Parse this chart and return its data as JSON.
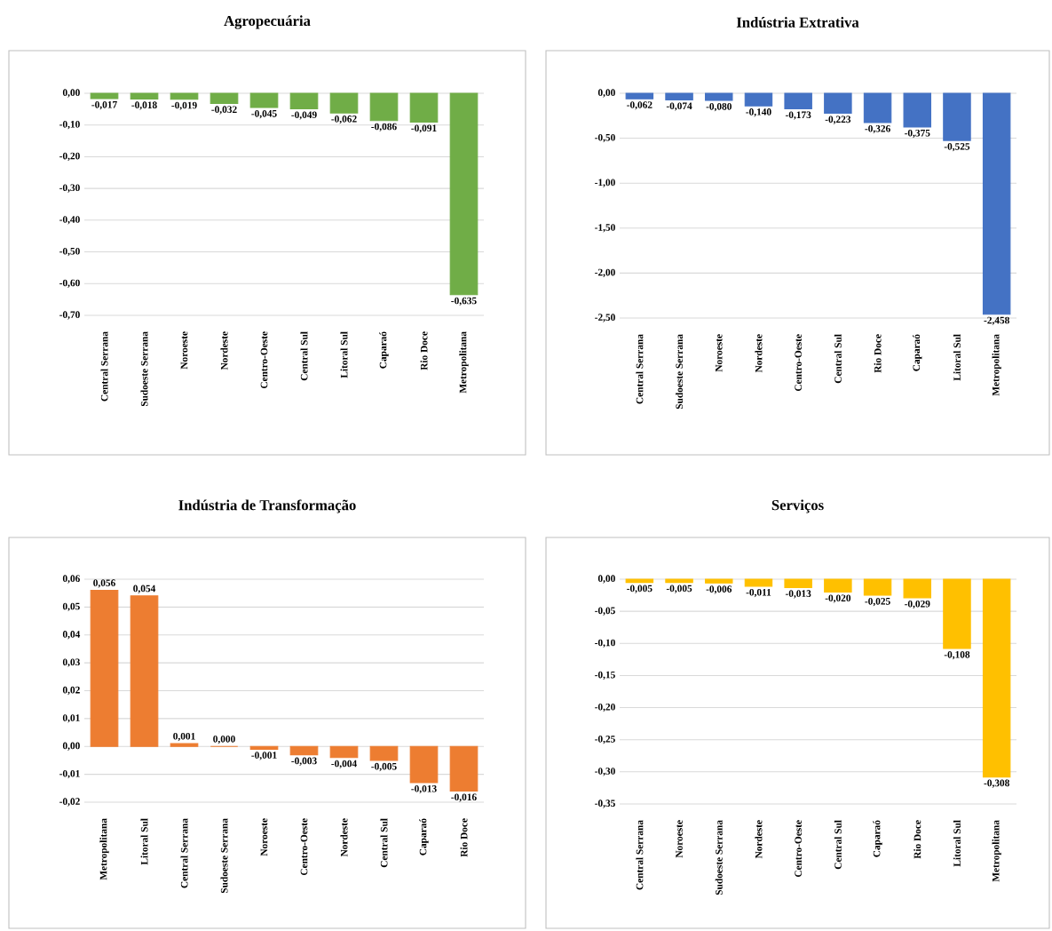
{
  "chart_data": [
    {
      "type": "bar",
      "title": "Agropecuária",
      "color": "#70ad47",
      "grid": "y",
      "categories": [
        "Central Serrana",
        "Sudoeste Serrana",
        "Noroeste",
        "Nordeste",
        "Centro-Oeste",
        "Central Sul",
        "Litoral Sul",
        "Caparaó",
        "Rio Doce",
        "Metropolitana"
      ],
      "values": [
        -0.017,
        -0.018,
        -0.019,
        -0.032,
        -0.045,
        -0.049,
        -0.062,
        -0.086,
        -0.091,
        -0.635
      ],
      "value_labels": [
        "-0,017",
        "-0,018",
        "-0,019",
        "-0,032",
        "-0,045",
        "-0,049",
        "-0,062",
        "-0,086",
        "-0,091",
        "-0,635"
      ],
      "ylim": [
        -0.7,
        0
      ],
      "yticks": [
        {
          "value": 0,
          "label": "0,00"
        },
        {
          "value": -0.1,
          "label": "-0,10"
        },
        {
          "value": -0.2,
          "label": "-0,20"
        },
        {
          "value": -0.3,
          "label": "-0,30"
        },
        {
          "value": -0.4,
          "label": "-0,40"
        },
        {
          "value": -0.5,
          "label": "-0,50"
        },
        {
          "value": -0.6,
          "label": "-0,60"
        },
        {
          "value": -0.7,
          "label": "-0,70"
        }
      ]
    },
    {
      "type": "bar",
      "title": "Indústria Extrativa",
      "color": "#4472c4",
      "grid": "y",
      "categories": [
        "Central Serrana",
        "Sudoeste Serrana",
        "Noroeste",
        "Nordeste",
        "Centro-Oeste",
        "Central Sul",
        "Rio Doce",
        "Caparaó",
        "Litoral Sul",
        "Metropolitana"
      ],
      "values": [
        -0.062,
        -0.074,
        -0.08,
        -0.14,
        -0.173,
        -0.223,
        -0.326,
        -0.375,
        -0.525,
        -2.458
      ],
      "value_labels": [
        "-0,062",
        "-0,074",
        "-0,080",
        "-0,140",
        "-0,173",
        "-0,223",
        "-0,326",
        "-0,375",
        "-0,525",
        "-2,458"
      ],
      "ylim": [
        -2.5,
        0
      ],
      "yticks": [
        {
          "value": 0,
          "label": "0,00"
        },
        {
          "value": -0.5,
          "label": "-0,50"
        },
        {
          "value": -1,
          "label": "-1,00"
        },
        {
          "value": -1.5,
          "label": "-1,50"
        },
        {
          "value": -2,
          "label": "-2,00"
        },
        {
          "value": -2.5,
          "label": "-2,50"
        }
      ]
    },
    {
      "type": "bar",
      "title": "Indústria de Transformação",
      "color": "#ed7d31",
      "grid": "y",
      "categories": [
        "Metropolitana",
        "Litoral Sul",
        "Central Serrana",
        "Sudoeste Serrana",
        "Noroeste",
        "Centro-Oeste",
        "Nordeste",
        "Central Sul",
        "Caparaó",
        "Rio Doce"
      ],
      "values": [
        0.056,
        0.054,
        0.001,
        0.0,
        -0.001,
        -0.003,
        -0.004,
        -0.005,
        -0.013,
        -0.016
      ],
      "value_labels": [
        "0,056",
        "0,054",
        "0,001",
        "0,000",
        "-0,001",
        "-0,003",
        "-0,004",
        "-0,005",
        "-0,013",
        "-0,016"
      ],
      "ylim": [
        -0.02,
        0.06
      ],
      "yticks": [
        {
          "value": 0.06,
          "label": "0,06"
        },
        {
          "value": 0.05,
          "label": "0,05"
        },
        {
          "value": 0.04,
          "label": "0,04"
        },
        {
          "value": 0.03,
          "label": "0,03"
        },
        {
          "value": 0.02,
          "label": "0,02"
        },
        {
          "value": 0.01,
          "label": "0,01"
        },
        {
          "value": 0,
          "label": "0,00"
        },
        {
          "value": -0.01,
          "label": "-0,01"
        },
        {
          "value": -0.02,
          "label": "-0,02"
        }
      ]
    },
    {
      "type": "bar",
      "title": "Serviços",
      "color": "#ffc000",
      "grid": "y",
      "categories": [
        "Central Serrana",
        "Noroeste",
        "Sudoeste Serrana",
        "Nordeste",
        "Centro-Oeste",
        "Central Sul",
        "Caparaó",
        "Rio Doce",
        "Litoral Sul",
        "Metropolitana"
      ],
      "values": [
        -0.005,
        -0.005,
        -0.006,
        -0.011,
        -0.013,
        -0.02,
        -0.025,
        -0.029,
        -0.108,
        -0.308
      ],
      "value_labels": [
        "-0,005",
        "-0,005",
        "-0,006",
        "-0,011",
        "-0,013",
        "-0,020",
        "-0,025",
        "-0,029",
        "-0,108",
        "-0,308"
      ],
      "ylim": [
        -0.35,
        0
      ],
      "yticks": [
        {
          "value": 0,
          "label": "0,00"
        },
        {
          "value": -0.05,
          "label": "-0,05"
        },
        {
          "value": -0.1,
          "label": "-0,10"
        },
        {
          "value": -0.15,
          "label": "-0,15"
        },
        {
          "value": -0.2,
          "label": "-0,20"
        },
        {
          "value": -0.25,
          "label": "-0,25"
        },
        {
          "value": -0.3,
          "label": "-0,30"
        },
        {
          "value": -0.35,
          "label": "-0,35"
        }
      ]
    }
  ]
}
